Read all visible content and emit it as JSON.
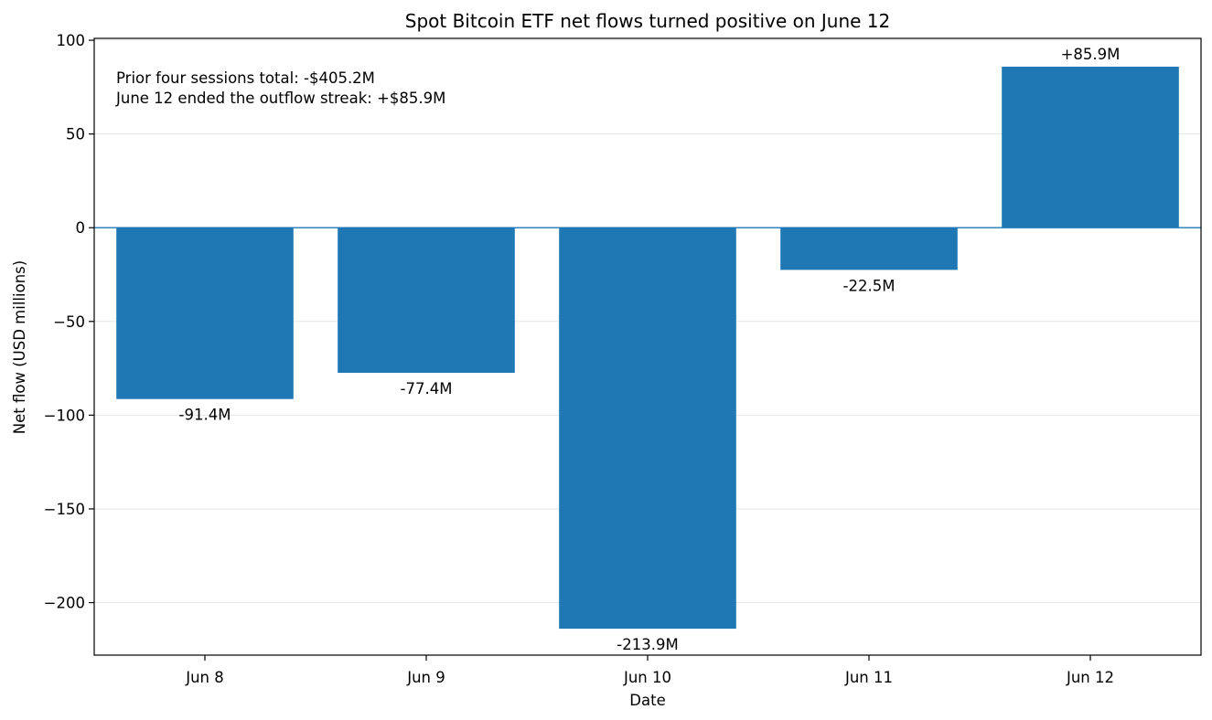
{
  "chart_data": {
    "type": "bar",
    "title": "Spot Bitcoin ETF net flows turned positive on June 12",
    "xlabel": "Date",
    "ylabel": "Net flow (USD millions)",
    "categories": [
      "Jun 8",
      "Jun 9",
      "Jun 10",
      "Jun 11",
      "Jun 12"
    ],
    "values": [
      -91.4,
      -77.4,
      -213.9,
      -22.5,
      85.9
    ],
    "data_labels": [
      "-91.4M",
      "-77.4M",
      "-213.9M",
      "-22.5M",
      "+85.9M"
    ],
    "ylim": [
      -228,
      101
    ],
    "yticks": [
      100,
      50,
      0,
      -50,
      -100,
      -150,
      -200
    ],
    "ytick_labels": [
      "100",
      "50",
      "0",
      "−50",
      "−100",
      "−150",
      "−200"
    ],
    "annotations": [
      "Prior four sessions total: -$405.2M",
      "June 12 ended the outflow streak: +$85.9M"
    ],
    "grid": "horizontal",
    "bar_color": "#1f77b4",
    "zero_line_color": "#1f77b4",
    "grid_color": "#e6e6e6"
  }
}
